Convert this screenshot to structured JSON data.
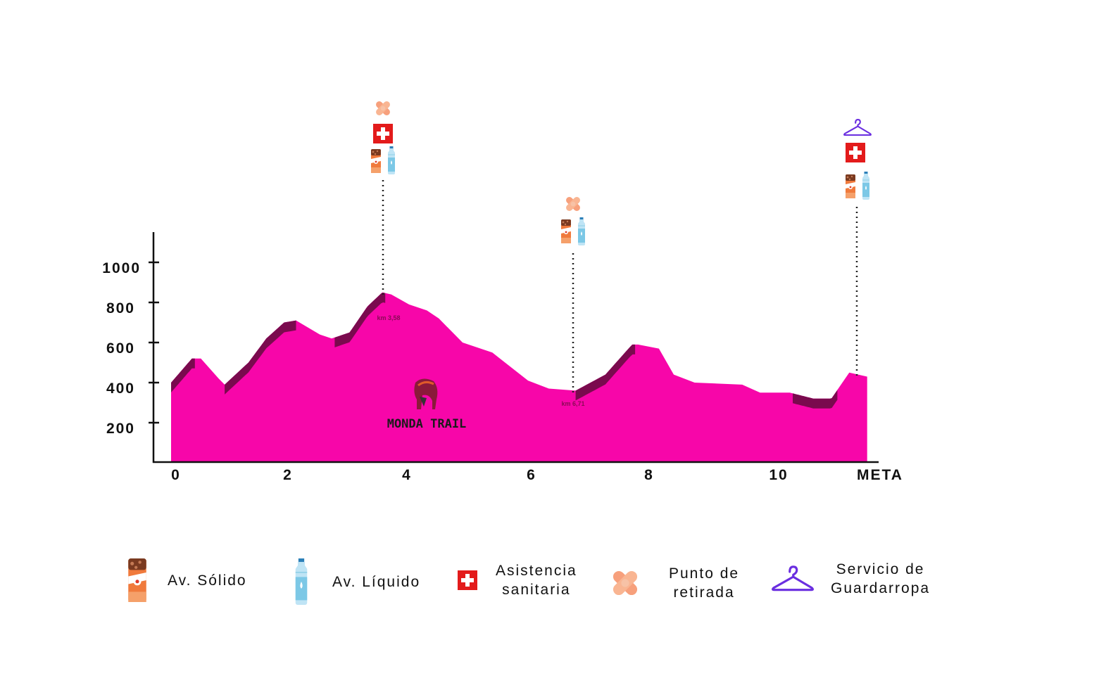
{
  "chart_data": {
    "type": "area",
    "title": "",
    "xlabel": "",
    "ylabel": "",
    "x_ticks": [
      "0",
      "2",
      "4",
      "6",
      "8",
      "10",
      "META"
    ],
    "y_ticks": [
      "200",
      "400",
      "600",
      "800",
      "1000"
    ],
    "xlim": [
      0,
      11.7
    ],
    "ylim": [
      0,
      1150
    ],
    "colors": {
      "fill": "#f706a9",
      "uphill": "#7a0a4e",
      "axis": "#111111",
      "dots": "#222222"
    },
    "series": [
      {
        "x": [
          0,
          0.35,
          0.5,
          0.8,
          0.9,
          1.3,
          1.6,
          1.9,
          2.1,
          2.5,
          2.7,
          3.0,
          3.3,
          3.55,
          3.7,
          4.0,
          4.3,
          4.5,
          4.9,
          5.4,
          6.0,
          6.35,
          6.8,
          7.3,
          7.75,
          7.85,
          8.2,
          8.45,
          8.8,
          9.6,
          9.9,
          10.4,
          10.8,
          11.1,
          11.4,
          11.7
        ],
        "y": [
          400,
          520,
          520,
          420,
          390,
          500,
          620,
          700,
          710,
          640,
          620,
          650,
          780,
          850,
          840,
          790,
          760,
          720,
          600,
          550,
          410,
          370,
          360,
          440,
          590,
          590,
          570,
          440,
          400,
          390,
          350,
          350,
          320,
          320,
          450,
          430
        ]
      }
    ],
    "climbs": [
      [
        0,
        0.4
      ],
      [
        0.9,
        2.1
      ],
      [
        2.75,
        3.6
      ],
      [
        6.8,
        7.8
      ],
      [
        10.45,
        11.2
      ]
    ],
    "annotations": [
      {
        "x": 3.58,
        "y": 850,
        "label": "km 3,58",
        "icons": [
          "punto-de-retirada",
          "asistencia-sanitaria",
          "av-solido",
          "av-liquido"
        ]
      },
      {
        "x": 6.71,
        "y": 360,
        "label": "km 6,71",
        "icons": [
          "punto-de-retirada",
          "av-solido",
          "av-liquido"
        ]
      },
      {
        "x": 11.5,
        "y": 450,
        "label": "",
        "icons": [
          "guardarropa",
          "asistencia-sanitaria",
          "av-solido",
          "av-liquido"
        ]
      }
    ],
    "logo_text": "MONDA TRAIL",
    "legend": [
      {
        "icon": "av-solido-icon",
        "label": "Av. Sólido"
      },
      {
        "icon": "av-liquido-icon",
        "label": "Av. Líquido"
      },
      {
        "icon": "asistencia-sanitaria-icon",
        "label": "Asistencia\nsanitaria"
      },
      {
        "icon": "punto-de-retirada-icon",
        "label": "Punto de\nretirada"
      },
      {
        "icon": "guardarropa-icon",
        "label": "Servicio de\nGuardarropa"
      }
    ],
    "legend_position": "bottom",
    "grid": false
  }
}
